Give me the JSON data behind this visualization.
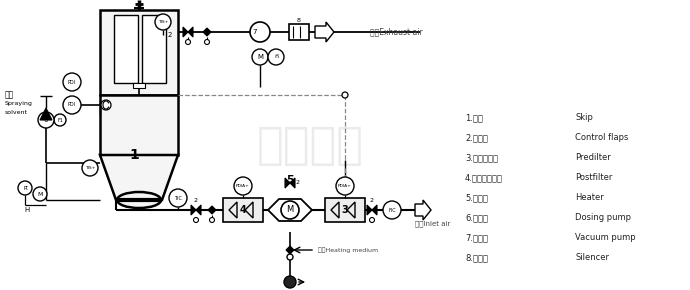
{
  "bg_color": "#ffffff",
  "legend_items": [
    [
      "1.料车",
      "Skip"
    ],
    [
      "2.控制阀",
      "Control flaps"
    ],
    [
      "3.初效过滤器",
      "Predilter"
    ],
    [
      "4.亚高效过滤器",
      "Postfilter"
    ],
    [
      "5.加热器",
      "Heater"
    ],
    [
      "6.料液泵",
      "Dosing pump"
    ],
    [
      "7.引风机",
      "Vacuum pump"
    ],
    [
      "8.消音器",
      "Silencer"
    ]
  ],
  "watermark": "健达干燥",
  "label_exhaust": "排气Exhaust air",
  "label_inlet": "进气Inlet air",
  "label_heating": "加热Heating medium"
}
